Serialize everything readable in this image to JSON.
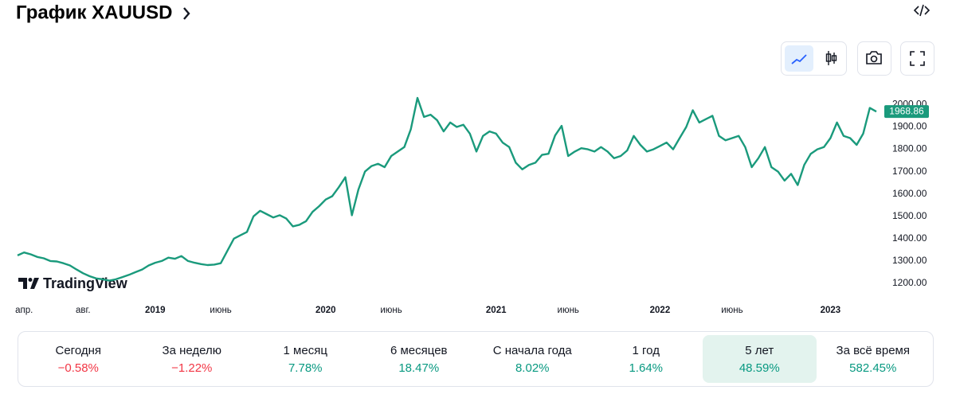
{
  "header": {
    "title": "График XAUUSD"
  },
  "chart_data": {
    "type": "line",
    "color": "#1a9a7c",
    "categories": [
      null,
      "апр.",
      null,
      null,
      null,
      null,
      null,
      null,
      null,
      null,
      "авг.",
      null,
      null,
      null,
      null,
      null,
      null,
      null,
      null,
      null,
      null,
      "2019",
      null,
      null,
      null,
      null,
      null,
      null,
      null,
      null,
      null,
      "июнь",
      null,
      null,
      null,
      null,
      null,
      null,
      null,
      null,
      null,
      null,
      null,
      null,
      null,
      null,
      null,
      "2020",
      null,
      null,
      null,
      null,
      null,
      null,
      null,
      null,
      null,
      "июнь",
      null,
      null,
      null,
      null,
      null,
      null,
      null,
      null,
      null,
      null,
      null,
      null,
      null,
      null,
      null,
      "2021",
      null,
      null,
      null,
      null,
      null,
      null,
      null,
      null,
      null,
      null,
      "июнь",
      null,
      null,
      null,
      null,
      null,
      null,
      null,
      null,
      null,
      null,
      null,
      null,
      null,
      "2022",
      null,
      null,
      null,
      null,
      null,
      null,
      null,
      null,
      null,
      null,
      "июнь",
      null,
      null,
      null,
      null,
      null,
      null,
      null,
      null,
      null,
      null,
      null,
      null,
      null,
      null,
      "2023",
      null,
      null,
      null,
      null,
      null,
      null,
      null
    ],
    "values": [
      1325,
      1338,
      1330,
      1318,
      1312,
      1300,
      1298,
      1290,
      1280,
      1262,
      1245,
      1232,
      1222,
      1218,
      1212,
      1218,
      1228,
      1238,
      1250,
      1262,
      1280,
      1292,
      1300,
      1315,
      1310,
      1322,
      1300,
      1292,
      1286,
      1282,
      1284,
      1290,
      1345,
      1400,
      1415,
      1430,
      1500,
      1525,
      1510,
      1495,
      1505,
      1490,
      1455,
      1462,
      1478,
      1520,
      1545,
      1575,
      1590,
      1630,
      1675,
      1505,
      1620,
      1700,
      1725,
      1735,
      1720,
      1770,
      1790,
      1810,
      1890,
      2030,
      1945,
      1955,
      1930,
      1880,
      1920,
      1900,
      1910,
      1870,
      1790,
      1860,
      1880,
      1870,
      1830,
      1810,
      1740,
      1710,
      1730,
      1740,
      1775,
      1780,
      1862,
      1905,
      1770,
      1790,
      1805,
      1800,
      1790,
      1810,
      1790,
      1760,
      1770,
      1795,
      1860,
      1820,
      1790,
      1800,
      1815,
      1830,
      1800,
      1850,
      1900,
      1975,
      1920,
      1935,
      1950,
      1860,
      1840,
      1850,
      1860,
      1810,
      1720,
      1760,
      1810,
      1720,
      1700,
      1660,
      1690,
      1640,
      1730,
      1780,
      1800,
      1810,
      1850,
      1920,
      1860,
      1850,
      1820,
      1870,
      1985,
      1968.86
    ],
    "ylim": [
      1150,
      2055
    ],
    "yticks": [
      {
        "value": 1200,
        "label": "1200.00"
      },
      {
        "value": 1300,
        "label": "1300.00"
      },
      {
        "value": 1400,
        "label": "1400.00"
      },
      {
        "value": 1500,
        "label": "1500.00"
      },
      {
        "value": 1600,
        "label": "1600.00"
      },
      {
        "value": 1700,
        "label": "1700.00"
      },
      {
        "value": 1800,
        "label": "1800.00"
      },
      {
        "value": 1900,
        "label": "1900.00"
      },
      {
        "value": 2000,
        "label": "2000.00"
      }
    ],
    "grid": false
  },
  "watermark": "TradingView",
  "periods": {
    "selected": 6,
    "items": [
      {
        "label": "Сегодня",
        "change": "−0.58%"
      },
      {
        "label": "За неделю",
        "change": "−1.22%"
      },
      {
        "label": "1 месяц",
        "change": "7.78%"
      },
      {
        "label": "6 месяцев",
        "change": "18.47%"
      },
      {
        "label": "С начала года",
        "change": "8.02%"
      },
      {
        "label": "1 год",
        "change": "1.64%"
      },
      {
        "label": "5 лет",
        "change": "48.59%"
      },
      {
        "label": "За всё время",
        "change": "582.45%"
      }
    ]
  }
}
